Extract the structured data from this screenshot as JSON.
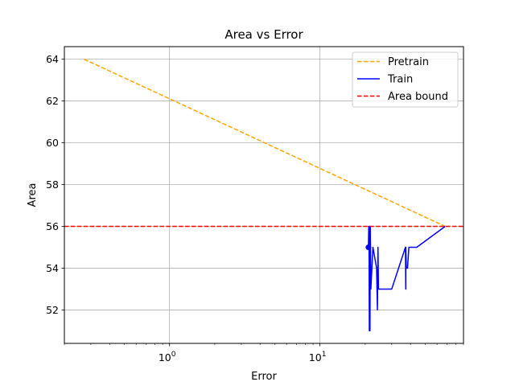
{
  "chart_data": {
    "type": "line",
    "title": "Area vs Error",
    "xlabel": "Error",
    "ylabel": "Area",
    "xscale": "log",
    "xlim": [
      0.2,
      90
    ],
    "ylim": [
      50.4,
      64.6
    ],
    "grid": true,
    "legend_position": "top-right",
    "x_ticks": [
      {
        "value": 1,
        "base": "10",
        "exp": "0"
      },
      {
        "value": 10,
        "base": "10",
        "exp": "1"
      }
    ],
    "y_ticks": [
      52,
      54,
      56,
      58,
      60,
      62,
      64
    ],
    "series": [
      {
        "name": "Pretrain",
        "color": "#ffa500",
        "style": "dashed",
        "points": [
          [
            0.27,
            64
          ],
          [
            68,
            56
          ]
        ]
      },
      {
        "name": "Train",
        "color": "#0000ff",
        "style": "solid",
        "points": [
          [
            68,
            56
          ],
          [
            44,
            55
          ],
          [
            39,
            55
          ],
          [
            38.2,
            54
          ],
          [
            37.5,
            54
          ],
          [
            37.2,
            55
          ],
          [
            37.2,
            53
          ],
          [
            37,
            55
          ],
          [
            30,
            53
          ],
          [
            26,
            53
          ],
          [
            24.5,
            53
          ],
          [
            24.3,
            55
          ],
          [
            24.1,
            52
          ],
          [
            23.8,
            54
          ],
          [
            22.5,
            55
          ],
          [
            21.8,
            53
          ],
          [
            21.6,
            56
          ],
          [
            21.5,
            51
          ],
          [
            21.4,
            56
          ],
          [
            21.3,
            51
          ],
          [
            21.2,
            55
          ],
          [
            21.1,
            56
          ],
          [
            21,
            55
          ]
        ],
        "marker": [
          21,
          55
        ]
      },
      {
        "name": "Area bound",
        "color": "#ff0000",
        "style": "dashed",
        "y": 56
      }
    ]
  }
}
